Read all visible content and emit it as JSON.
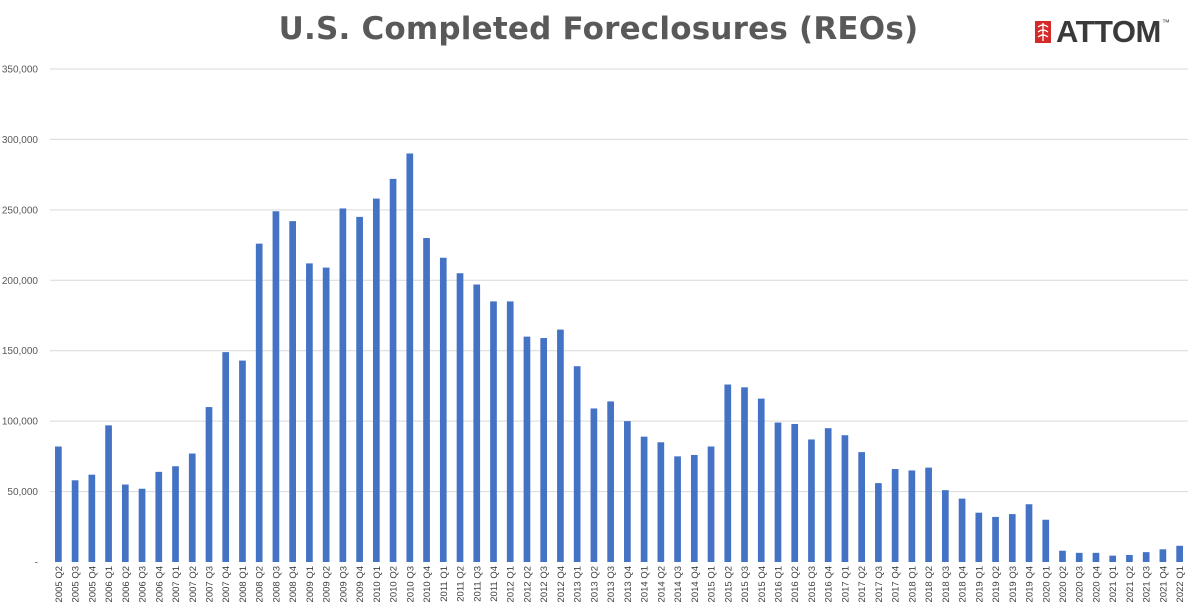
{
  "header": {
    "title": "U.S. Completed Foreclosures (REOs)",
    "logo_text": "ATTOM",
    "logo_tm": "™"
  },
  "colors": {
    "bar": "#4472c4",
    "grid": "#d9d9d9",
    "logo_red": "#d42a2a"
  },
  "chart_data": {
    "type": "bar",
    "title": "U.S. Completed Foreclosures (REOs)",
    "xlabel": "",
    "ylabel": "",
    "ylim": [
      0,
      350000
    ],
    "yticks": [
      0,
      50000,
      100000,
      150000,
      200000,
      250000,
      300000,
      350000
    ],
    "ytick_labels": [
      "-",
      "50,000",
      "100,000",
      "150,000",
      "200,000",
      "250,000",
      "300,000",
      "350,000"
    ],
    "grid": true,
    "legend": "none",
    "categories": [
      "2005 Q2",
      "2005 Q3",
      "2005 Q4",
      "2006 Q1",
      "2006 Q2",
      "2006 Q3",
      "2006 Q4",
      "2007 Q1",
      "2007 Q2",
      "2007 Q3",
      "2007 Q4",
      "2008 Q1",
      "2008 Q2",
      "2008 Q3",
      "2008 Q4",
      "2009 Q1",
      "2009 Q2",
      "2009 Q3",
      "2009 Q4",
      "2010 Q1",
      "2010 Q2",
      "2010 Q3",
      "2010 Q4",
      "2011 Q1",
      "2011 Q2",
      "2011 Q3",
      "2011 Q4",
      "2012 Q1",
      "2012 Q2",
      "2012 Q3",
      "2012 Q4",
      "2013 Q1",
      "2013 Q2",
      "2013 Q3",
      "2013 Q4",
      "2014 Q1",
      "2014 Q2",
      "2014 Q3",
      "2014 Q4",
      "2015 Q1",
      "2015 Q2",
      "2015 Q3",
      "2015 Q4",
      "2016 Q1",
      "2016 Q2",
      "2016 Q3",
      "2016 Q4",
      "2017 Q1",
      "2017 Q2",
      "2017 Q3",
      "2017 Q4",
      "2018 Q1",
      "2018 Q2",
      "2018 Q3",
      "2018 Q4",
      "2019 Q1",
      "2019 Q2",
      "2019 Q3",
      "2019 Q4",
      "2020 Q1",
      "2020 Q2",
      "2020 Q3",
      "2020 Q4",
      "2021 Q1",
      "2021 Q2",
      "2021 Q3",
      "2021 Q4",
      "2022 Q1"
    ],
    "values": [
      82000,
      58000,
      62000,
      97000,
      55000,
      52000,
      64000,
      68000,
      77000,
      110000,
      149000,
      143000,
      226000,
      249000,
      242000,
      212000,
      209000,
      251000,
      245000,
      258000,
      272000,
      290000,
      230000,
      216000,
      205000,
      197000,
      185000,
      185000,
      160000,
      159000,
      165000,
      139000,
      109000,
      114000,
      100000,
      89000,
      85000,
      75000,
      76000,
      82000,
      126000,
      124000,
      116000,
      99000,
      98000,
      87000,
      95000,
      90000,
      78000,
      56000,
      66000,
      65000,
      67000,
      51000,
      45000,
      35000,
      32000,
      34000,
      41000,
      30000,
      8000,
      6500,
      6500,
      4500,
      5000,
      7000,
      9000,
      11500
    ]
  }
}
